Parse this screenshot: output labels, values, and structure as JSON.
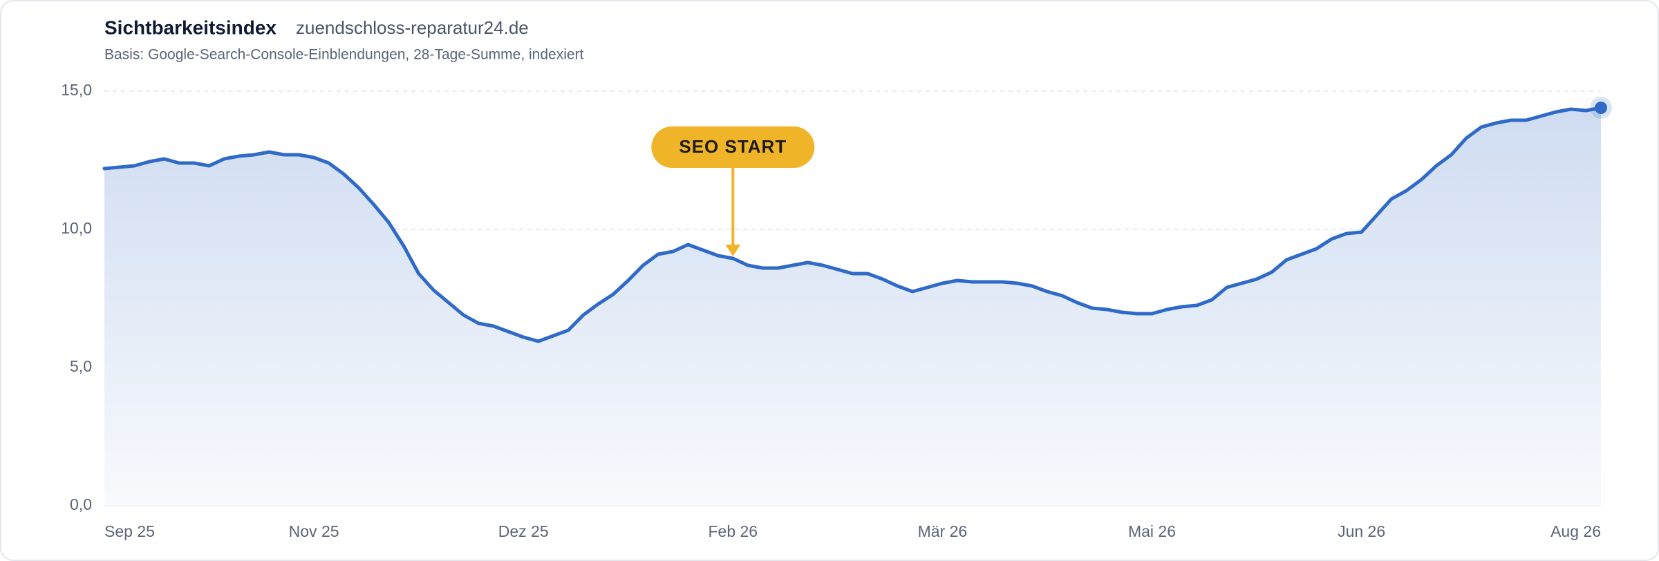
{
  "chart_data": {
    "type": "line",
    "title": "Sichtbarkeitsindex",
    "domain": "zuendschloss-reparatur24.de",
    "subtitle": "Basis: Google-Search-Console-Einblendungen, 28-Tage-Summe, indexiert",
    "categories": [
      "Sep 25",
      null,
      null,
      null,
      null,
      null,
      null,
      null,
      null,
      null,
      null,
      null,
      null,
      null,
      "Nov 25",
      null,
      null,
      null,
      null,
      null,
      null,
      null,
      null,
      null,
      null,
      null,
      null,
      null,
      "Dez 25",
      null,
      null,
      null,
      null,
      null,
      null,
      null,
      null,
      null,
      null,
      null,
      null,
      null,
      "Feb 26",
      null,
      null,
      null,
      null,
      null,
      null,
      null,
      null,
      null,
      null,
      null,
      null,
      null,
      "Mär 26",
      null,
      null,
      null,
      null,
      null,
      null,
      null,
      null,
      null,
      null,
      null,
      null,
      null,
      "Mai 26",
      null,
      null,
      null,
      null,
      null,
      null,
      null,
      null,
      null,
      null,
      null,
      null,
      null,
      "Jun 26",
      null,
      null,
      null,
      null,
      null,
      null,
      null,
      null,
      null,
      null,
      null,
      null,
      null,
      null,
      null,
      "Aug 26"
    ],
    "series": [
      {
        "color": "#2f6ac8",
        "values": [
          12.2,
          12.25,
          12.3,
          12.45,
          12.55,
          12.4,
          12.4,
          12.3,
          12.55,
          12.65,
          12.7,
          12.8,
          12.7,
          12.7,
          12.6,
          12.4,
          12.0,
          11.5,
          10.9,
          10.25,
          9.4,
          8.4,
          7.8,
          7.35,
          6.9,
          6.6,
          6.5,
          6.3,
          6.1,
          5.95,
          6.15,
          6.35,
          6.9,
          7.3,
          7.65,
          8.15,
          8.7,
          9.1,
          9.2,
          9.45,
          9.25,
          9.05,
          8.95,
          8.7,
          8.6,
          8.6,
          8.7,
          8.8,
          8.7,
          8.55,
          8.4,
          8.4,
          8.2,
          7.95,
          7.75,
          7.9,
          8.05,
          8.15,
          8.1,
          8.1,
          8.1,
          8.05,
          7.95,
          7.75,
          7.6,
          7.35,
          7.15,
          7.1,
          7.0,
          6.95,
          6.95,
          7.1,
          7.2,
          7.25,
          7.45,
          7.9,
          8.05,
          8.2,
          8.45,
          8.9,
          9.1,
          9.3,
          9.65,
          9.85,
          9.9,
          10.5,
          11.1,
          11.4,
          11.8,
          12.3,
          12.7,
          13.3,
          13.7,
          13.85,
          13.95,
          13.95,
          14.1,
          14.25,
          14.35,
          14.3,
          14.4
        ]
      }
    ],
    "ylim": [
      0,
      15
    ],
    "yticks": [
      {
        "value": 0,
        "label": "0,0"
      },
      {
        "value": 5,
        "label": "5,0"
      },
      {
        "value": 10,
        "label": "10,0"
      },
      {
        "value": 15,
        "label": "15,0"
      }
    ],
    "grid": true,
    "annotations": [
      {
        "label": "SEO START",
        "x": "Feb 26"
      }
    ]
  }
}
